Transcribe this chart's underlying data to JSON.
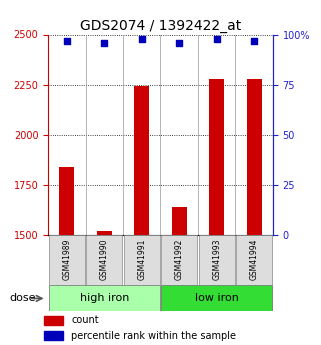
{
  "title": "GDS2074 / 1392422_at",
  "samples": [
    "GSM41989",
    "GSM41990",
    "GSM41991",
    "GSM41992",
    "GSM41993",
    "GSM41994"
  ],
  "bar_values": [
    1840,
    1520,
    2245,
    1640,
    2280,
    2280
  ],
  "percentile_values": [
    97,
    96,
    98,
    96,
    98,
    97
  ],
  "ylim_left": [
    1500,
    2500
  ],
  "ylim_right": [
    0,
    100
  ],
  "yticks_left": [
    1500,
    1750,
    2000,
    2250,
    2500
  ],
  "yticks_right": [
    0,
    25,
    50,
    75,
    100
  ],
  "ytick_labels_left": [
    "1500",
    "1750",
    "2000",
    "2250",
    "2500"
  ],
  "ytick_labels_right": [
    "0",
    "25",
    "50",
    "75",
    "100%"
  ],
  "groups": [
    {
      "label": "high iron",
      "samples": [
        0,
        1,
        2
      ],
      "color": "#AAFFAA"
    },
    {
      "label": "low iron",
      "samples": [
        3,
        4,
        5
      ],
      "color": "#33DD33"
    }
  ],
  "bar_color": "#CC0000",
  "dot_color": "#0000BB",
  "bar_width": 0.4,
  "title_fontsize": 10,
  "tick_fontsize": 7,
  "sample_fontsize": 5.5,
  "group_fontsize": 8,
  "bg_color": "#FFFFFF",
  "left_tick_color": "#CC0000",
  "right_tick_color": "#2222CC",
  "dose_label": "dose",
  "legend_count_label": "count",
  "legend_pct_label": "percentile rank within the sample",
  "legend_fontsize": 7
}
